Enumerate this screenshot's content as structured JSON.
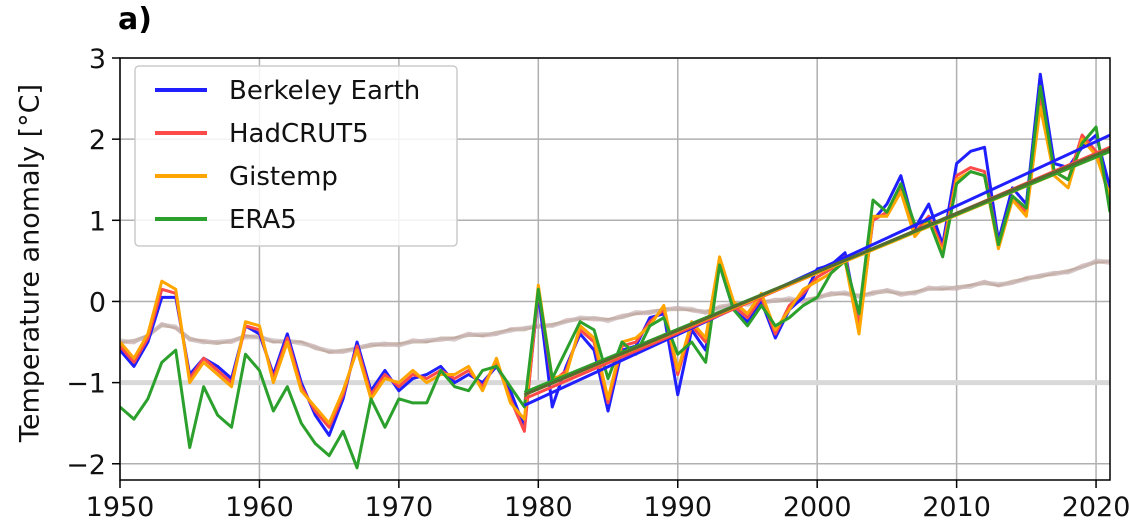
{
  "panel_label": "a)",
  "chart_data": {
    "type": "line",
    "title": "",
    "xlabel": "",
    "ylabel": "Temperature anomaly [°C]",
    "xlim": [
      1950,
      2021
    ],
    "ylim": [
      -2.2,
      3.0
    ],
    "xticks": [
      1950,
      1960,
      1970,
      1980,
      1990,
      2000,
      2010,
      2020
    ],
    "yticks": [
      -2,
      -1,
      0,
      1,
      2,
      3
    ],
    "ytick_labels": [
      "−2",
      "−1",
      "0",
      "1",
      "2",
      "3"
    ],
    "grid": true,
    "legend_position": "top-left",
    "reference_line": {
      "y": -1,
      "color": "#d9d9d9"
    },
    "series": [
      {
        "name": "Berkeley Earth",
        "color": "#1f1fff",
        "x_start": 1950,
        "values": [
          -0.6,
          -0.8,
          -0.5,
          0.05,
          0.05,
          -0.9,
          -0.7,
          -0.8,
          -0.95,
          -0.3,
          -0.4,
          -0.9,
          -0.4,
          -1.0,
          -1.4,
          -1.65,
          -1.2,
          -0.5,
          -1.1,
          -0.85,
          -1.1,
          -0.95,
          -0.9,
          -0.8,
          -1.0,
          -0.9,
          -1.0,
          -0.8,
          -1.1,
          -1.55,
          0.1,
          -1.3,
          -0.8,
          -0.4,
          -0.6,
          -1.35,
          -0.6,
          -0.55,
          -0.2,
          -0.15,
          -1.15,
          -0.35,
          -0.6,
          0.45,
          -0.1,
          -0.25,
          0.0,
          -0.45,
          -0.1,
          0.05,
          0.4,
          0.45,
          0.6,
          -0.3,
          1.0,
          1.2,
          1.55,
          0.9,
          1.2,
          0.7,
          1.7,
          1.85,
          1.9,
          0.75,
          1.4,
          1.2,
          2.8,
          1.7,
          1.65,
          1.9,
          2.05,
          1.4
        ]
      },
      {
        "name": "HadCRUT5",
        "color": "#ff4a4a",
        "x_start": 1950,
        "values": [
          -0.55,
          -0.75,
          -0.45,
          0.15,
          0.1,
          -0.95,
          -0.7,
          -0.85,
          -1.0,
          -0.3,
          -0.35,
          -0.95,
          -0.45,
          -1.05,
          -1.35,
          -1.55,
          -1.15,
          -0.55,
          -1.15,
          -0.9,
          -1.05,
          -0.9,
          -0.95,
          -0.85,
          -0.95,
          -0.85,
          -1.05,
          -0.75,
          -1.2,
          -1.6,
          0.15,
          -1.0,
          -0.85,
          -0.35,
          -0.5,
          -1.25,
          -0.55,
          -0.5,
          -0.25,
          -0.1,
          -0.9,
          -0.3,
          -0.5,
          0.5,
          -0.05,
          -0.2,
          0.05,
          -0.4,
          -0.05,
          0.1,
          0.3,
          0.4,
          0.55,
          -0.3,
          1.0,
          1.1,
          1.4,
          0.85,
          1.05,
          0.65,
          1.55,
          1.65,
          1.6,
          0.7,
          1.3,
          1.1,
          2.5,
          1.6,
          1.5,
          2.05,
          1.85,
          1.25
        ]
      },
      {
        "name": "Gistemp",
        "color": "#ffa500",
        "x_start": 1950,
        "values": [
          -0.5,
          -0.7,
          -0.4,
          0.25,
          0.15,
          -1.0,
          -0.75,
          -0.9,
          -1.05,
          -0.25,
          -0.3,
          -1.0,
          -0.5,
          -1.1,
          -1.3,
          -1.5,
          -1.1,
          -0.6,
          -1.2,
          -0.95,
          -1.0,
          -0.85,
          -1.0,
          -0.9,
          -0.9,
          -0.8,
          -1.1,
          -0.7,
          -1.25,
          -1.45,
          0.2,
          -0.95,
          -0.9,
          -0.3,
          -0.45,
          -1.2,
          -0.5,
          -0.45,
          -0.3,
          -0.05,
          -0.85,
          -0.25,
          -0.45,
          0.55,
          0.0,
          -0.15,
          0.1,
          -0.35,
          -0.1,
          0.15,
          0.25,
          0.35,
          0.5,
          -0.4,
          1.05,
          1.05,
          1.35,
          0.8,
          1.0,
          0.6,
          1.5,
          1.6,
          1.55,
          0.65,
          1.25,
          1.05,
          2.4,
          1.55,
          1.4,
          2.0,
          1.8,
          1.3
        ]
      },
      {
        "name": "ERA5",
        "color": "#2ca02c",
        "x_start": 1950,
        "values": [
          -1.3,
          -1.45,
          -1.2,
          -0.75,
          -0.6,
          -1.8,
          -1.05,
          -1.4,
          -1.55,
          -0.65,
          -0.85,
          -1.35,
          -1.05,
          -1.5,
          -1.75,
          -1.9,
          -1.6,
          -2.05,
          -1.2,
          -1.55,
          -1.2,
          -1.25,
          -1.25,
          -0.85,
          -1.05,
          -1.1,
          -0.85,
          -0.8,
          -1.05,
          -1.3,
          0.15,
          -0.95,
          -0.6,
          -0.25,
          -0.35,
          -0.95,
          -0.5,
          -0.65,
          -0.3,
          -0.2,
          -0.65,
          -0.5,
          -0.75,
          0.45,
          -0.1,
          -0.3,
          -0.05,
          -0.3,
          -0.2,
          -0.05,
          0.05,
          0.35,
          0.5,
          -0.15,
          1.25,
          1.1,
          1.45,
          0.95,
          1.0,
          0.55,
          1.45,
          1.6,
          1.55,
          0.7,
          1.3,
          1.15,
          2.65,
          1.6,
          1.5,
          1.95,
          2.15,
          1.1
        ]
      }
    ],
    "trend_lines": [
      {
        "color": "#1f1fff",
        "x": [
          1979,
          2021
        ],
        "y": [
          -1.28,
          2.05
        ]
      },
      {
        "color": "#ff4a4a",
        "x": [
          1979,
          2021
        ],
        "y": [
          -1.2,
          1.9
        ]
      },
      {
        "color": "#ffa500",
        "x": [
          1979,
          2021
        ],
        "y": [
          -1.15,
          1.85
        ]
      },
      {
        "color": "#2ca02c",
        "x": [
          1979,
          2021
        ],
        "y": [
          -1.12,
          1.85
        ]
      },
      {
        "color": "#556b2f",
        "x": [
          1979,
          2021
        ],
        "y": [
          -1.15,
          1.88
        ]
      }
    ],
    "faint_series": {
      "colors": [
        "#c8a8a8",
        "#b8a090",
        "#c9b8b8"
      ],
      "x_start": 1950,
      "values": [
        -0.5,
        -0.48,
        -0.42,
        -0.3,
        -0.32,
        -0.45,
        -0.5,
        -0.52,
        -0.48,
        -0.42,
        -0.45,
        -0.5,
        -0.48,
        -0.5,
        -0.58,
        -0.62,
        -0.6,
        -0.58,
        -0.55,
        -0.52,
        -0.52,
        -0.5,
        -0.5,
        -0.45,
        -0.45,
        -0.42,
        -0.42,
        -0.38,
        -0.35,
        -0.35,
        -0.3,
        -0.28,
        -0.25,
        -0.22,
        -0.2,
        -0.22,
        -0.2,
        -0.15,
        -0.12,
        -0.1,
        -0.1,
        -0.1,
        -0.12,
        -0.08,
        -0.05,
        -0.02,
        0.0,
        0.0,
        0.02,
        0.02,
        0.05,
        0.08,
        0.1,
        0.08,
        0.1,
        0.12,
        0.1,
        0.12,
        0.15,
        0.15,
        0.18,
        0.2,
        0.22,
        0.2,
        0.25,
        0.28,
        0.3,
        0.35,
        0.38,
        0.42,
        0.48,
        0.5
      ]
    }
  }
}
